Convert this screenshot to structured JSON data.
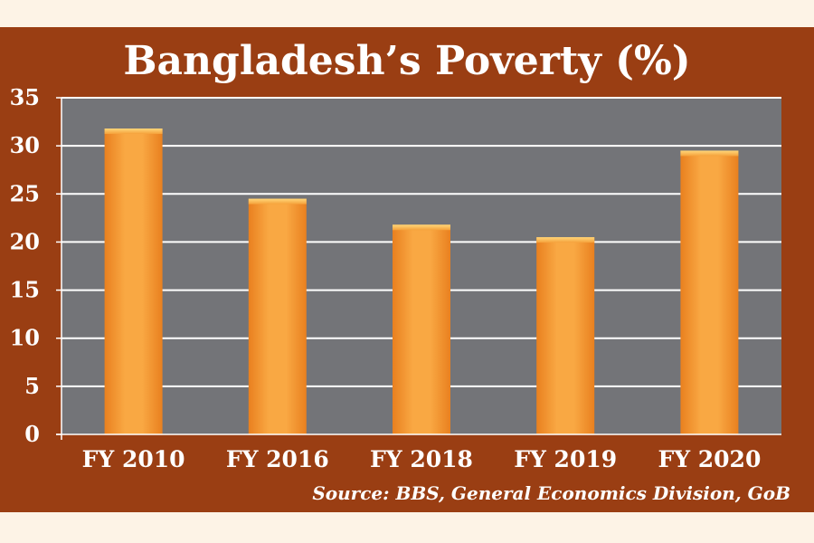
{
  "chart_data": {
    "type": "bar",
    "title": "Bangladesh’s Poverty (%)",
    "categories": [
      "FY 2010",
      "FY 2016",
      "FY 2018",
      "FY 2019",
      "FY 2020"
    ],
    "values": [
      31.8,
      24.5,
      21.8,
      20.5,
      29.5
    ],
    "ylim": [
      0,
      35
    ],
    "yticks": [
      0,
      5,
      10,
      15,
      20,
      25,
      30,
      35
    ],
    "xlabel": "",
    "ylabel": "",
    "grid": true,
    "colors": {
      "background": "#9a3e13",
      "plot_area": "#737478",
      "bar": "#f59a36",
      "gridline": "#ffffff",
      "text": "#ffffff"
    }
  },
  "source": "Source: BBS, General Economics Division, GoB"
}
